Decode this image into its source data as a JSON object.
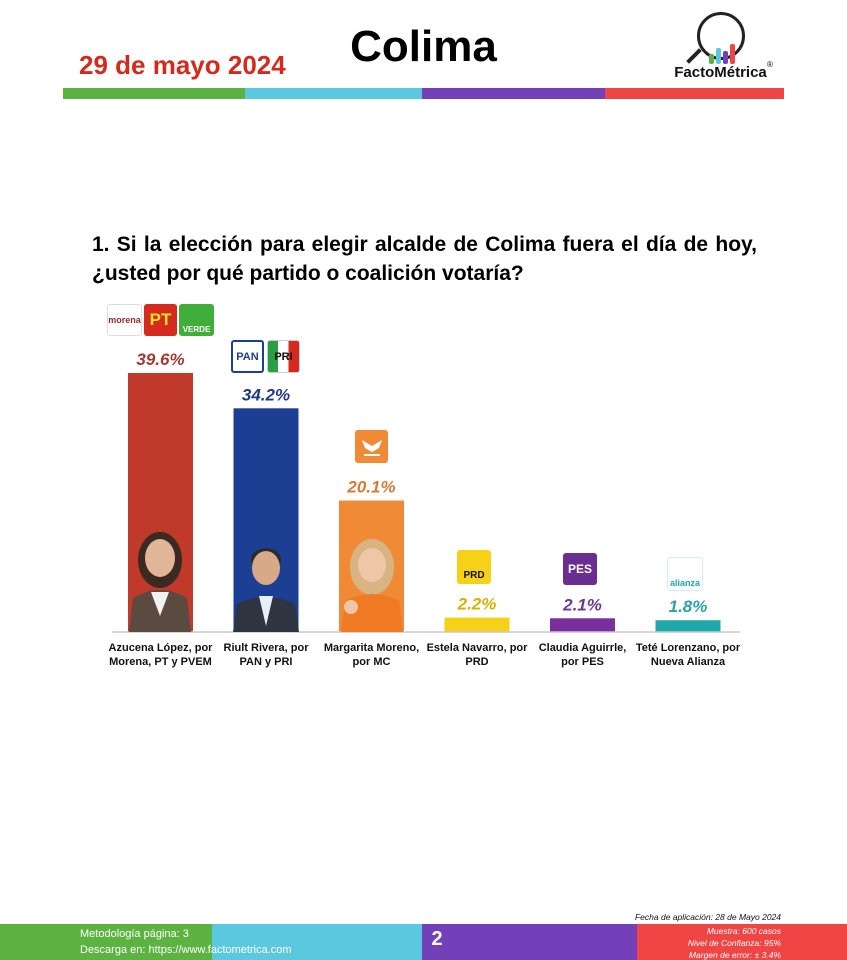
{
  "header": {
    "date": "29 de mayo 2024",
    "title": "Colima",
    "brand": "FactoMétrica",
    "brand_mark": "®"
  },
  "colors": {
    "green": "#5db342",
    "cyan": "#5bc8e0",
    "purple": "#7340b9",
    "red": "#ef4545"
  },
  "question": "1. Si la elección para elegir alcalde de Colima fuera el día de hoy, ¿usted por qué partido o coalición votaría?",
  "chart_data": {
    "type": "bar",
    "title": "",
    "xlabel": "",
    "ylabel": "",
    "ylim": [
      0,
      40
    ],
    "grid": false,
    "categories": [
      "Azucena López, por Morena, PT y PVEM",
      "Riult Rivera, por PAN y PRI",
      "Margarita Moreno, por MC",
      "Estela Navarro, por PRD",
      "Claudia Aguirrle, por PES",
      "Teté Lorenzano, por Nueva Alianza"
    ],
    "category_lines": [
      [
        "Azucena López, por",
        "Morena, PT y PVEM"
      ],
      [
        "Riult Rivera, por",
        "PAN y PRI"
      ],
      [
        "Margarita Moreno,",
        "por MC"
      ],
      [
        "Estela Navarro, por",
        "PRD"
      ],
      [
        "Claudia Aguirrle,",
        "por PES"
      ],
      [
        "Teté Lorenzano, por",
        "Nueva Alianza"
      ]
    ],
    "values": [
      39.6,
      34.2,
      20.1,
      2.2,
      2.1,
      1.8
    ],
    "data_labels": [
      "39.6%",
      "34.2%",
      "20.1%",
      "2.2%",
      "2.1%",
      "1.8%"
    ],
    "bar_colors": [
      "#c0392b",
      "#1c3f94",
      "#f18a36",
      "#f7d117",
      "#7b2f9e",
      "#20a9a9"
    ],
    "label_colors": [
      "#9e3a33",
      "#1f3a8a",
      "#d77a33",
      "#d4b300",
      "#6a3a98",
      "#2ba3a8"
    ]
  },
  "party_logos": {
    "morena": "morena",
    "pt": "PT",
    "verde": "VERDE",
    "pan": "PAN",
    "pri": "PRI",
    "mc_icon": "mc-eagle-icon",
    "prd": "PRD",
    "pes": "PES",
    "alianza": "alianza"
  },
  "footer": {
    "methodology": "Metodología página: 3",
    "download": "Descarga en: https://www.factometrica.com",
    "page_number": "2",
    "fecha": "Fecha de aplicación: 28 de Mayo 2024",
    "muestra": "Muestra: 600 casos",
    "confianza": "Nivel de Confianza: 95%",
    "error": "Margen de error: ± 3.4%"
  }
}
